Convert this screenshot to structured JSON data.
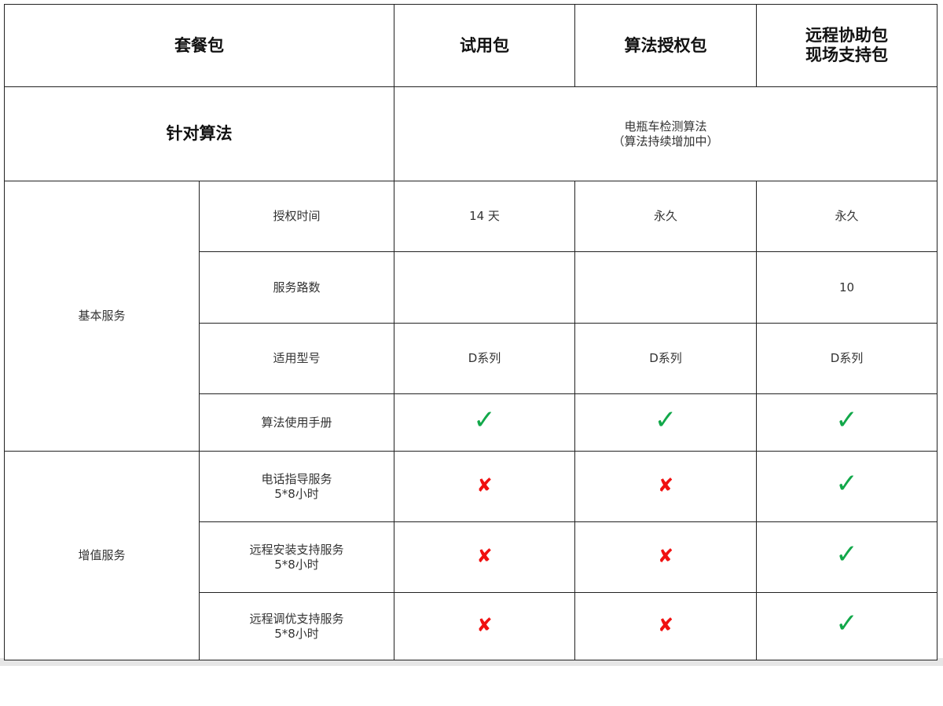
{
  "header": {
    "package_label": "套餐包",
    "columns": [
      "试用包",
      "算法授权包",
      [
        "远程协助包",
        "现场支持包"
      ]
    ]
  },
  "algorithm_row": {
    "label": "针对算法",
    "value_lines": [
      "电瓶车检测算法",
      "（算法持续增加中）"
    ]
  },
  "groups": [
    {
      "label": "基本服务",
      "rows": [
        {
          "label": [
            "授权时间"
          ],
          "values": [
            "14 天",
            "永久",
            "永久"
          ]
        },
        {
          "label": [
            "服务路数"
          ],
          "values": [
            "",
            "",
            "10"
          ]
        },
        {
          "label": [
            "适用型号"
          ],
          "values": [
            "D系列",
            "D系列",
            "D系列"
          ]
        },
        {
          "label": [
            "算法使用手册"
          ],
          "values": [
            "check",
            "check",
            "check"
          ]
        }
      ]
    },
    {
      "label": "增值服务",
      "rows": [
        {
          "label": [
            "电话指导服务",
            "5*8小时"
          ],
          "values": [
            "cross",
            "cross",
            "check"
          ]
        },
        {
          "label": [
            "远程安装支持服务",
            "5*8小时"
          ],
          "values": [
            "cross",
            "cross",
            "check"
          ]
        },
        {
          "label": [
            "远程调优支持服务",
            "5*8小时"
          ],
          "values": [
            "cross",
            "cross",
            "check"
          ]
        }
      ]
    }
  ],
  "icons": {
    "check": "✓",
    "cross": "✘"
  },
  "colors": {
    "check": "#12a84a",
    "cross": "#f01010"
  }
}
